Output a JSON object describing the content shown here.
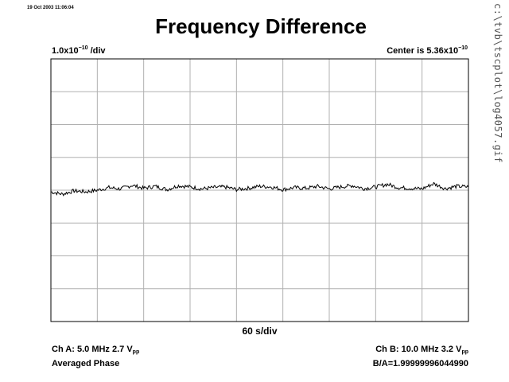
{
  "header": {
    "timestamp": "19 Oct 2003 11:06:04",
    "title": "Frequency Difference",
    "side_path": "c:\\tvb\\tscplot\\log4057.gif"
  },
  "scale_label": {
    "prefix": "1.0x10",
    "exp": "−10",
    "suffix": " /div"
  },
  "center_label": {
    "prefix": "Center is 5.36x10",
    "exp": "−10"
  },
  "x_div_label": "60 s/div",
  "channel_a": {
    "line1_prefix": "Ch A: 5.0 MHz 2.7 V",
    "line1_sub": "pp",
    "line2": "Averaged Phase"
  },
  "channel_b": {
    "line1_prefix": "Ch B: 10.0 MHz 3.2 V",
    "line1_sub": "pp",
    "line2": "B/A=1.99999996044990"
  },
  "colors": {
    "grid": "#b0b0b0",
    "frame": "#000000",
    "trace": "#000000"
  },
  "chart_data": {
    "type": "line",
    "title": "Frequency Difference",
    "xlabel": "60 s/div",
    "ylabel": "1.0x10−10 /div",
    "x_divisions": 9,
    "y_divisions": 8,
    "y_unit_per_div": 1e-10,
    "center_value": 5.36e-10,
    "xlim_seconds": [
      0,
      540
    ],
    "ylim_divisions": [
      -4,
      4
    ],
    "grid": true,
    "series": [
      {
        "x_seconds": [
          0,
          15,
          30,
          45,
          60,
          75,
          90,
          105,
          120,
          135,
          150,
          165,
          180,
          195,
          210,
          225,
          240,
          255,
          270,
          285,
          300,
          315,
          330,
          345,
          360,
          375,
          390,
          405,
          420,
          435,
          450,
          465,
          480,
          495,
          510,
          525,
          540
        ],
        "y_divisions": [
          -0.05,
          -0.12,
          -0.02,
          -0.05,
          0.0,
          0.08,
          0.04,
          0.15,
          0.06,
          0.12,
          0.02,
          0.14,
          0.1,
          0.04,
          0.08,
          0.1,
          0.02,
          0.06,
          0.12,
          0.1,
          0.02,
          0.08,
          0.06,
          0.12,
          0.04,
          0.1,
          0.14,
          0.05,
          0.1,
          0.18,
          0.08,
          0.06,
          0.04,
          0.2,
          0.05,
          0.12,
          0.1
        ]
      }
    ]
  }
}
